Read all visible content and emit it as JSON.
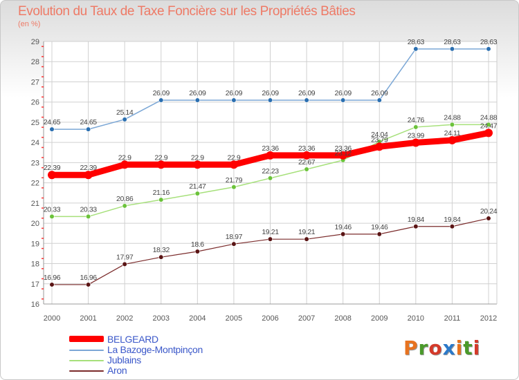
{
  "title": "Evolution du Taux de Taxe Foncière sur les Propriétés Bâties",
  "unit": "(en %)",
  "colors": {
    "title": "#ee7a66",
    "grid": "#d0d0d0",
    "axis_tick_label": "#555555",
    "legend_text": "#3a57c9"
  },
  "logo": {
    "text": "Proxiti",
    "colors": [
      "#e8731f",
      "#4a9a2a",
      "#d43a2a",
      "#2b79c9",
      "#e8731f",
      "#4a9a2a",
      "#d43a2a"
    ]
  },
  "chart_data": {
    "type": "line",
    "x": [
      "2000",
      "2001",
      "2002",
      "2003",
      "2004",
      "2005",
      "2006",
      "2007",
      "2008",
      "2009",
      "2010",
      "2011",
      "2012"
    ],
    "ylim": [
      16,
      29
    ],
    "y_ticks": [
      16,
      17,
      18,
      19,
      20,
      21,
      22,
      23,
      24,
      25,
      26,
      27,
      28,
      29
    ],
    "grid": true,
    "legend_position": "bottom-left",
    "series": [
      {
        "name": "BELGEARD",
        "color": "#ff0000",
        "marker": "#ff0000",
        "width": 9,
        "marker_r": 6,
        "values": [
          22.39,
          22.39,
          22.9,
          22.9,
          22.9,
          22.9,
          23.36,
          23.36,
          23.36,
          23.79,
          23.99,
          24.11,
          24.47
        ],
        "labels": [
          "22.39",
          "22.39",
          "22.9",
          "22.9",
          "22.9",
          "22.9",
          "23.36",
          "23.36",
          "23.36",
          "23.79",
          "23.99",
          "24.11",
          "24.47"
        ]
      },
      {
        "name": "La Bazoge-Montpinçon",
        "color": "#7ba7d6",
        "marker": "#2b6fb0",
        "width": 1.5,
        "marker_r": 3.3,
        "values": [
          24.65,
          24.65,
          25.14,
          26.09,
          26.09,
          26.09,
          26.09,
          26.09,
          26.09,
          26.09,
          28.63,
          28.63,
          28.63
        ],
        "labels": [
          "24.65",
          "24.65",
          "25.14",
          "26.09",
          "26.09",
          "26.09",
          "26.09",
          "26.09",
          "26.09",
          "26.09",
          "28.63",
          "28.63",
          "28.63"
        ]
      },
      {
        "name": "Jublains",
        "color": "#a6e07a",
        "marker": "#6bc23a",
        "width": 1.5,
        "marker_r": 3.3,
        "values": [
          20.33,
          20.33,
          20.86,
          21.16,
          21.47,
          21.79,
          22.23,
          22.67,
          23.12,
          24.04,
          24.76,
          24.88,
          24.88
        ],
        "labels": [
          "20.33",
          "20.33",
          "20.86",
          "21.16",
          "21.47",
          "21.79",
          "22.23",
          "22.67",
          "23.12",
          "24.04",
          "24.76",
          "24.88",
          "24.88"
        ]
      },
      {
        "name": "Aron",
        "color": "#7a2a2a",
        "marker": "#5a1414",
        "width": 1.2,
        "marker_r": 3.3,
        "values": [
          16.96,
          16.96,
          17.97,
          18.32,
          18.6,
          18.97,
          19.21,
          19.21,
          19.46,
          19.46,
          19.84,
          19.84,
          20.24
        ],
        "labels": [
          "16.96",
          "16.96",
          "17.97",
          "18.32",
          "18.6",
          "18.97",
          "19.21",
          "19.21",
          "19.46",
          "19.46",
          "19.84",
          "19.84",
          "20.24"
        ]
      }
    ]
  }
}
